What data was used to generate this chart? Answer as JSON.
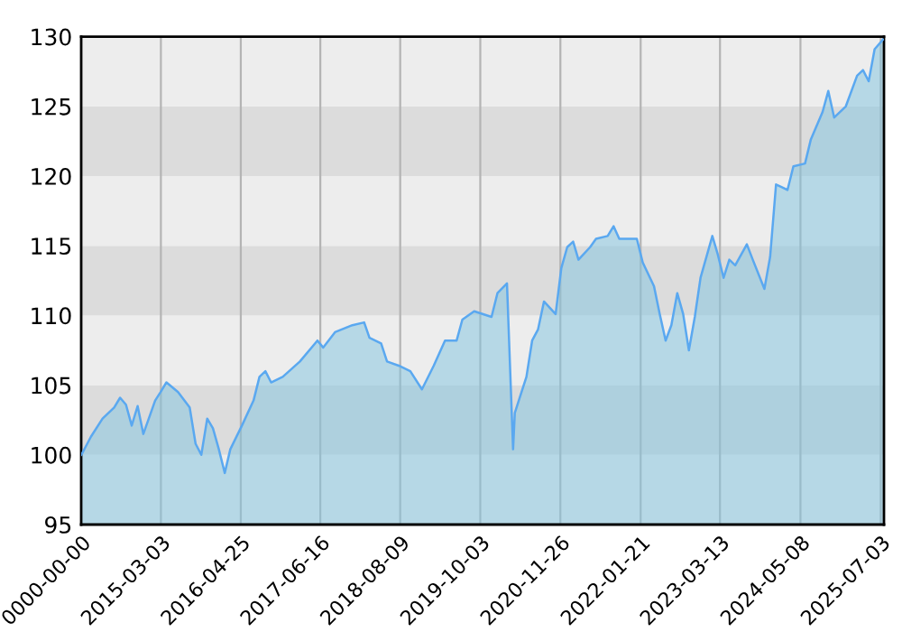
{
  "chart_data": {
    "type": "area",
    "x": [
      "2014-01-10",
      "2014-03",
      "2014-05",
      "2014-07",
      "2014-08",
      "2014-09",
      "2014-10",
      "2014-11",
      "2014-12",
      "2015-02",
      "2015-03",
      "2015-04",
      "2015-06",
      "2015-08",
      "2015-09",
      "2015-10",
      "2015-11",
      "2015-12",
      "2016-01",
      "2016-02",
      "2016-03",
      "2016-05",
      "2016-07",
      "2016-08",
      "2016-09",
      "2016-10",
      "2016-12",
      "2017-03",
      "2017-06",
      "2017-07",
      "2017-09",
      "2017-12",
      "2018-02",
      "2018-03",
      "2018-05",
      "2018-06",
      "2018-08",
      "2018-10",
      "2018-12",
      "2019-02",
      "2019-04",
      "2019-06",
      "2019-07",
      "2019-09",
      "2019-12",
      "2020-01",
      "2020-02-20",
      "2020-03-23",
      "2020-04",
      "2020-06",
      "2020-07",
      "2020-08",
      "2020-09",
      "2020-11",
      "2020-12",
      "2021-01",
      "2021-02",
      "2021-03",
      "2021-05",
      "2021-06",
      "2021-08",
      "2021-09",
      "2021-10",
      "2022-01",
      "2022-02",
      "2022-04",
      "2022-05",
      "2022-06",
      "2022-07",
      "2022-08",
      "2022-09",
      "2022-10",
      "2022-11",
      "2022-12",
      "2023-02",
      "2023-03",
      "2023-04",
      "2023-05",
      "2023-06",
      "2023-08",
      "2023-09",
      "2023-11",
      "2023-12",
      "2024-01",
      "2024-02",
      "2024-03",
      "2024-04",
      "2024-06",
      "2024-07",
      "2024-09",
      "2024-10",
      "2024-11",
      "2025-01",
      "2025-03",
      "2025-04",
      "2025-05",
      "2025-06",
      "2025-07-15"
    ],
    "series": [
      {
        "color": "#5aa8f0",
        "values": [
          100.0,
          101.3,
          102.6,
          103.4,
          104.1,
          103.6,
          102.1,
          103.5,
          101.5,
          103.9,
          104.5,
          105.2,
          104.5,
          103.4,
          100.8,
          100.0,
          102.6,
          101.9,
          100.4,
          98.7,
          100.4,
          102.1,
          103.9,
          105.6,
          106.0,
          105.2,
          105.6,
          106.7,
          108.2,
          107.7,
          108.8,
          109.3,
          109.5,
          108.4,
          108.0,
          106.7,
          106.4,
          106.0,
          104.7,
          106.4,
          108.2,
          108.2,
          109.7,
          110.3,
          109.9,
          111.6,
          112.3,
          100.4,
          103.0,
          105.6,
          108.2,
          109.0,
          111.0,
          110.1,
          113.4,
          114.9,
          115.3,
          114.0,
          114.9,
          115.5,
          115.7,
          116.4,
          115.5,
          115.5,
          113.8,
          112.1,
          110.1,
          108.2,
          109.3,
          111.6,
          110.1,
          107.5,
          109.9,
          112.7,
          115.7,
          114.4,
          112.7,
          114.0,
          113.6,
          115.1,
          114.0,
          111.9,
          114.2,
          119.4,
          119.2,
          119.0,
          120.7,
          120.9,
          122.6,
          124.6,
          126.1,
          124.2,
          125.0,
          127.2,
          127.6,
          126.8,
          129.1,
          129.8
        ]
      }
    ],
    "xlim": [
      "2014-01-09",
      "2025-07-20"
    ],
    "xticks": [
      {
        "value": "2014-01-09",
        "label": "0000-00-00"
      },
      "2015-03-03",
      "2016-04-25",
      "2017-06-16",
      "2018-08-09",
      "2019-10-03",
      "2020-11-26",
      "2022-01-21",
      "2023-03-13",
      "2024-05-08",
      "2025-07-03"
    ],
    "ylim": [
      95,
      130
    ],
    "yticks": [
      95,
      100,
      105,
      110,
      115,
      120,
      125,
      130
    ],
    "grid": true
  }
}
